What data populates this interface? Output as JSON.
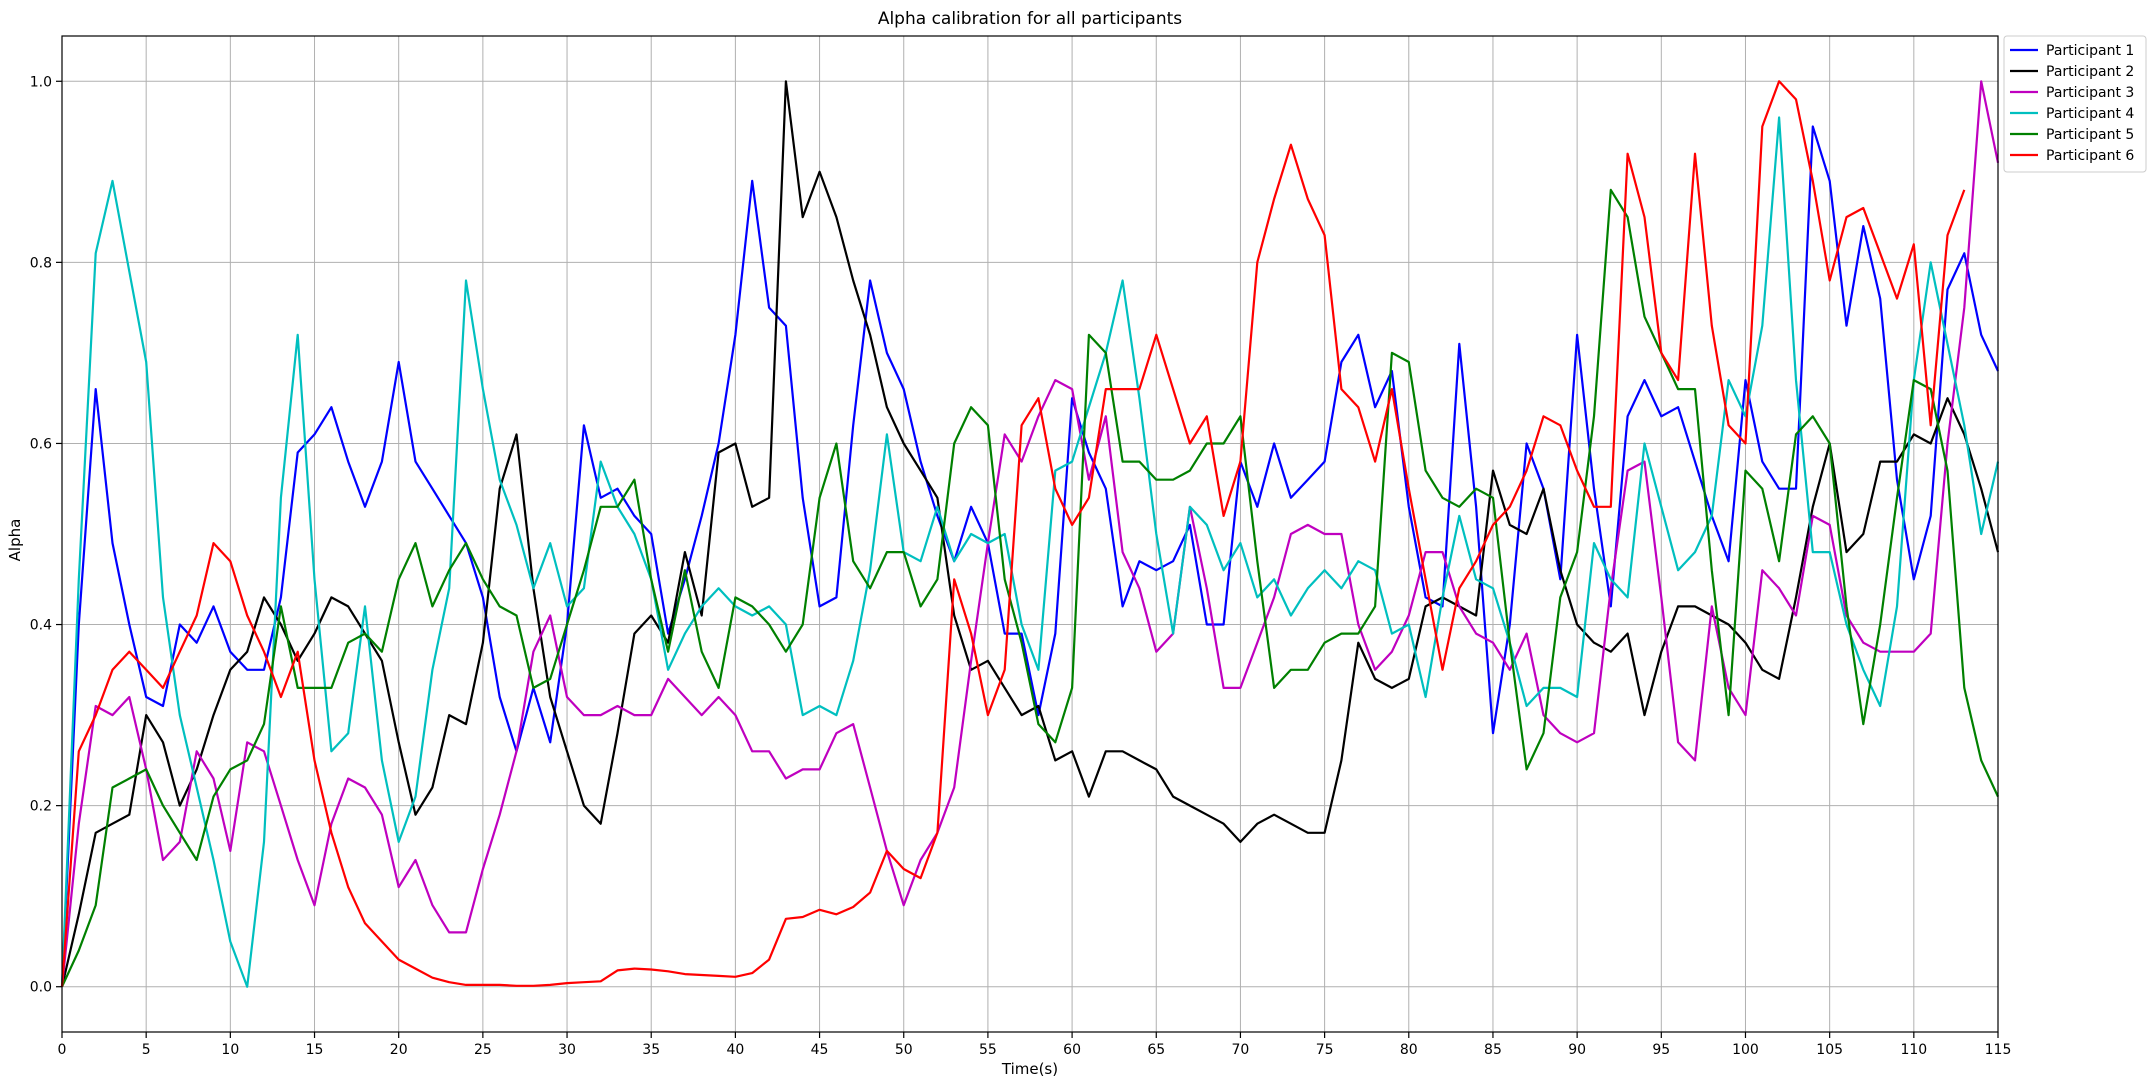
{
  "chart_data": {
    "type": "line",
    "title": "Alpha calibration for all participants",
    "xlabel": "Time(s)",
    "ylabel": "Alpha",
    "xlim": [
      0,
      115
    ],
    "ylim": [
      -0.05,
      1.05
    ],
    "xticks": [
      0,
      5,
      10,
      15,
      20,
      25,
      30,
      35,
      40,
      45,
      50,
      55,
      60,
      65,
      70,
      75,
      80,
      85,
      90,
      95,
      100,
      105,
      110,
      115
    ],
    "yticks": [
      0.0,
      0.2,
      0.4,
      0.6,
      0.8,
      1.0
    ],
    "ytick_labels": [
      "0.0",
      "0.2",
      "0.4",
      "0.6",
      "0.8",
      "1.0"
    ],
    "grid": true,
    "legend_position": "top-right (outside)",
    "series": [
      {
        "name": "Participant 1",
        "color": "#0000ff",
        "values": [
          0.0,
          0.4,
          0.66,
          0.49,
          0.4,
          0.32,
          0.31,
          0.4,
          0.38,
          0.42,
          0.37,
          0.35,
          0.35,
          0.43,
          0.59,
          0.61,
          0.64,
          0.58,
          0.53,
          0.58,
          0.69,
          0.58,
          0.55,
          0.52,
          0.49,
          0.43,
          0.32,
          0.26,
          0.33,
          0.27,
          0.4,
          0.62,
          0.54,
          0.55,
          0.52,
          0.5,
          0.39,
          0.45,
          0.52,
          0.6,
          0.72,
          0.89,
          0.75,
          0.73,
          0.54,
          0.42,
          0.43,
          0.62,
          0.78,
          0.7,
          0.66,
          0.58,
          0.52,
          0.47,
          0.53,
          0.49,
          0.39,
          0.39,
          0.3,
          0.39,
          0.65,
          0.59,
          0.55,
          0.42,
          0.47,
          0.46,
          0.47,
          0.51,
          0.4,
          0.4,
          0.58,
          0.53,
          0.6,
          0.54,
          0.56,
          0.58,
          0.69,
          0.72,
          0.64,
          0.68,
          0.53,
          0.43,
          0.42,
          0.71,
          0.53,
          0.28,
          0.4,
          0.6,
          0.55,
          0.45,
          0.72,
          0.55,
          0.42,
          0.63,
          0.67,
          0.63,
          0.64,
          0.58,
          0.52,
          0.47,
          0.67,
          0.58,
          0.55,
          0.55,
          0.95,
          0.89,
          0.73,
          0.84,
          0.76,
          0.56,
          0.45,
          0.52,
          0.77,
          0.81,
          0.72,
          0.68
        ]
      },
      {
        "name": "Participant 2",
        "color": "#000000",
        "values": [
          0.0,
          0.08,
          0.17,
          0.18,
          0.19,
          0.3,
          0.27,
          0.2,
          0.24,
          0.3,
          0.35,
          0.37,
          0.43,
          0.4,
          0.36,
          0.39,
          0.43,
          0.42,
          0.39,
          0.36,
          0.27,
          0.19,
          0.22,
          0.3,
          0.29,
          0.38,
          0.55,
          0.61,
          0.44,
          0.32,
          0.26,
          0.2,
          0.18,
          0.28,
          0.39,
          0.41,
          0.38,
          0.48,
          0.41,
          0.59,
          0.6,
          0.53,
          0.54,
          1.0,
          0.85,
          0.9,
          0.85,
          0.78,
          0.72,
          0.64,
          0.6,
          0.57,
          0.54,
          0.41,
          0.35,
          0.36,
          0.33,
          0.3,
          0.31,
          0.25,
          0.26,
          0.21,
          0.26,
          0.26,
          0.25,
          0.24,
          0.21,
          0.2,
          0.19,
          0.18,
          0.16,
          0.18,
          0.19,
          0.18,
          0.17,
          0.17,
          0.25,
          0.38,
          0.34,
          0.33,
          0.34,
          0.42,
          0.43,
          0.42,
          0.41,
          0.57,
          0.51,
          0.5,
          0.55,
          0.46,
          0.4,
          0.38,
          0.37,
          0.39,
          0.3,
          0.37,
          0.42,
          0.42,
          0.41,
          0.4,
          0.38,
          0.35,
          0.34,
          0.43,
          0.53,
          0.6,
          0.48,
          0.5,
          0.58,
          0.58,
          0.61,
          0.6,
          0.65,
          0.61,
          0.55,
          0.48
        ]
      },
      {
        "name": "Participant 3",
        "color": "#bf00bf",
        "values": [
          0.0,
          0.18,
          0.31,
          0.3,
          0.32,
          0.24,
          0.14,
          0.16,
          0.26,
          0.23,
          0.15,
          0.27,
          0.26,
          0.2,
          0.14,
          0.09,
          0.18,
          0.23,
          0.22,
          0.19,
          0.11,
          0.14,
          0.09,
          0.06,
          0.06,
          0.13,
          0.19,
          0.26,
          0.37,
          0.41,
          0.32,
          0.3,
          0.3,
          0.31,
          0.3,
          0.3,
          0.34,
          0.32,
          0.3,
          0.32,
          0.3,
          0.26,
          0.26,
          0.23,
          0.24,
          0.24,
          0.28,
          0.29,
          0.22,
          0.15,
          0.09,
          0.14,
          0.17,
          0.22,
          0.36,
          0.49,
          0.61,
          0.58,
          0.63,
          0.67,
          0.66,
          0.56,
          0.63,
          0.48,
          0.44,
          0.37,
          0.39,
          0.53,
          0.44,
          0.33,
          0.33,
          0.38,
          0.43,
          0.5,
          0.51,
          0.5,
          0.5,
          0.4,
          0.35,
          0.37,
          0.41,
          0.48,
          0.48,
          0.42,
          0.39,
          0.38,
          0.35,
          0.39,
          0.3,
          0.28,
          0.27,
          0.28,
          0.44,
          0.57,
          0.58,
          0.43,
          0.27,
          0.25,
          0.42,
          0.33,
          0.3,
          0.46,
          0.44,
          0.41,
          0.52,
          0.51,
          0.41,
          0.38,
          0.37,
          0.37,
          0.37,
          0.39,
          0.6,
          0.75,
          1.0,
          0.91
        ]
      },
      {
        "name": "Participant 4",
        "color": "#00bfbf",
        "values": [
          0.0,
          0.45,
          0.81,
          0.89,
          0.79,
          0.69,
          0.43,
          0.3,
          0.22,
          0.14,
          0.05,
          0.0,
          0.16,
          0.54,
          0.72,
          0.45,
          0.26,
          0.28,
          0.42,
          0.25,
          0.16,
          0.21,
          0.35,
          0.44,
          0.78,
          0.66,
          0.56,
          0.51,
          0.44,
          0.49,
          0.42,
          0.44,
          0.58,
          0.53,
          0.5,
          0.45,
          0.35,
          0.39,
          0.42,
          0.44,
          0.42,
          0.41,
          0.42,
          0.4,
          0.3,
          0.31,
          0.3,
          0.36,
          0.46,
          0.61,
          0.48,
          0.47,
          0.53,
          0.47,
          0.5,
          0.49,
          0.5,
          0.4,
          0.35,
          0.57,
          0.58,
          0.64,
          0.7,
          0.78,
          0.65,
          0.5,
          0.39,
          0.53,
          0.51,
          0.46,
          0.49,
          0.43,
          0.45,
          0.41,
          0.44,
          0.46,
          0.44,
          0.47,
          0.46,
          0.39,
          0.4,
          0.32,
          0.43,
          0.52,
          0.45,
          0.44,
          0.38,
          0.31,
          0.33,
          0.33,
          0.32,
          0.49,
          0.45,
          0.43,
          0.6,
          0.53,
          0.46,
          0.48,
          0.52,
          0.67,
          0.63,
          0.73,
          0.96,
          0.67,
          0.48,
          0.48,
          0.4,
          0.35,
          0.31,
          0.42,
          0.67,
          0.8,
          0.71,
          0.62,
          0.5,
          0.58
        ]
      },
      {
        "name": "Participant 5",
        "color": "#008000",
        "values": [
          0.0,
          0.04,
          0.09,
          0.22,
          0.23,
          0.24,
          0.2,
          0.17,
          0.14,
          0.21,
          0.24,
          0.25,
          0.29,
          0.42,
          0.33,
          0.33,
          0.33,
          0.38,
          0.39,
          0.37,
          0.45,
          0.49,
          0.42,
          0.46,
          0.49,
          0.45,
          0.42,
          0.41,
          0.33,
          0.34,
          0.4,
          0.46,
          0.53,
          0.53,
          0.56,
          0.45,
          0.37,
          0.46,
          0.37,
          0.33,
          0.43,
          0.42,
          0.4,
          0.37,
          0.4,
          0.54,
          0.6,
          0.47,
          0.44,
          0.48,
          0.48,
          0.42,
          0.45,
          0.6,
          0.64,
          0.62,
          0.45,
          0.38,
          0.29,
          0.27,
          0.33,
          0.72,
          0.7,
          0.58,
          0.58,
          0.56,
          0.56,
          0.57,
          0.6,
          0.6,
          0.63,
          0.47,
          0.33,
          0.35,
          0.35,
          0.38,
          0.39,
          0.39,
          0.42,
          0.7,
          0.69,
          0.57,
          0.54,
          0.53,
          0.55,
          0.54,
          0.38,
          0.24,
          0.28,
          0.43,
          0.48,
          0.63,
          0.88,
          0.85,
          0.74,
          0.7,
          0.66,
          0.66,
          0.46,
          0.3,
          0.57,
          0.55,
          0.47,
          0.61,
          0.63,
          0.6,
          0.42,
          0.29,
          0.4,
          0.54,
          0.67,
          0.66,
          0.57,
          0.33,
          0.25,
          0.21
        ]
      },
      {
        "name": "Participant 6",
        "color": "#ff0000",
        "values": [
          0.0,
          0.26,
          0.3,
          0.35,
          0.37,
          0.35,
          0.33,
          0.37,
          0.41,
          0.49,
          0.47,
          0.41,
          0.37,
          0.32,
          0.37,
          0.25,
          0.17,
          0.11,
          0.07,
          0.05,
          0.03,
          0.02,
          0.01,
          0.005,
          0.002,
          0.002,
          0.002,
          0.001,
          0.001,
          0.002,
          0.004,
          0.005,
          0.006,
          0.018,
          0.02,
          0.019,
          0.017,
          0.014,
          0.013,
          0.012,
          0.011,
          0.015,
          0.03,
          0.075,
          0.077,
          0.085,
          0.08,
          0.088,
          0.104,
          0.15,
          0.13,
          0.12,
          0.17,
          0.45,
          0.39,
          0.3,
          0.35,
          0.62,
          0.65,
          0.55,
          0.51,
          0.54,
          0.66,
          0.66,
          0.66,
          0.72,
          0.66,
          0.6,
          0.63,
          0.52,
          0.58,
          0.8,
          0.87,
          0.93,
          0.87,
          0.83,
          0.66,
          0.64,
          0.58,
          0.66,
          0.55,
          0.45,
          0.35,
          0.44,
          0.47,
          0.51,
          0.53,
          0.57,
          0.63,
          0.62,
          0.57,
          0.53,
          0.53,
          0.92,
          0.85,
          0.7,
          0.67,
          0.92,
          0.73,
          0.62,
          0.6,
          0.95,
          1.0,
          0.98,
          0.89,
          0.78,
          0.85,
          0.86,
          0.81,
          0.76,
          0.82,
          0.62,
          0.83,
          0.88
        ]
      }
    ]
  }
}
